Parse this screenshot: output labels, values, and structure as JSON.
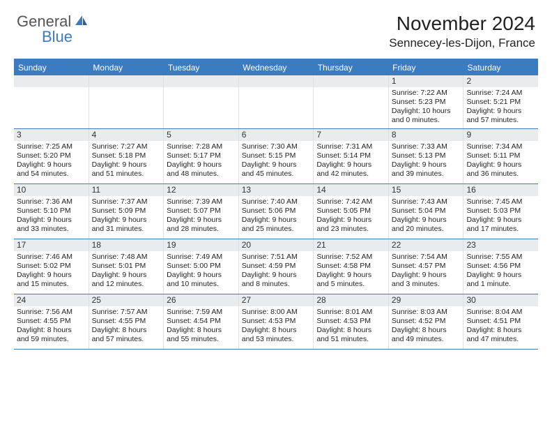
{
  "logo": {
    "general": "General",
    "blue": "Blue"
  },
  "header": {
    "monthTitle": "November 2024",
    "location": "Sennecey-les-Dijon, France"
  },
  "colors": {
    "accent": "#3b7bbf",
    "dayBar": "#e9ecef",
    "text": "#222222",
    "bg": "#ffffff"
  },
  "weekdays": [
    "Sunday",
    "Monday",
    "Tuesday",
    "Wednesday",
    "Thursday",
    "Friday",
    "Saturday"
  ],
  "weeks": [
    [
      {
        "n": "",
        "empty": true
      },
      {
        "n": "",
        "empty": true
      },
      {
        "n": "",
        "empty": true
      },
      {
        "n": "",
        "empty": true
      },
      {
        "n": "",
        "empty": true
      },
      {
        "n": "1",
        "sunrise": "Sunrise: 7:22 AM",
        "sunset": "Sunset: 5:23 PM",
        "day1": "Daylight: 10 hours",
        "day2": "and 0 minutes."
      },
      {
        "n": "2",
        "sunrise": "Sunrise: 7:24 AM",
        "sunset": "Sunset: 5:21 PM",
        "day1": "Daylight: 9 hours",
        "day2": "and 57 minutes."
      }
    ],
    [
      {
        "n": "3",
        "sunrise": "Sunrise: 7:25 AM",
        "sunset": "Sunset: 5:20 PM",
        "day1": "Daylight: 9 hours",
        "day2": "and 54 minutes."
      },
      {
        "n": "4",
        "sunrise": "Sunrise: 7:27 AM",
        "sunset": "Sunset: 5:18 PM",
        "day1": "Daylight: 9 hours",
        "day2": "and 51 minutes."
      },
      {
        "n": "5",
        "sunrise": "Sunrise: 7:28 AM",
        "sunset": "Sunset: 5:17 PM",
        "day1": "Daylight: 9 hours",
        "day2": "and 48 minutes."
      },
      {
        "n": "6",
        "sunrise": "Sunrise: 7:30 AM",
        "sunset": "Sunset: 5:15 PM",
        "day1": "Daylight: 9 hours",
        "day2": "and 45 minutes."
      },
      {
        "n": "7",
        "sunrise": "Sunrise: 7:31 AM",
        "sunset": "Sunset: 5:14 PM",
        "day1": "Daylight: 9 hours",
        "day2": "and 42 minutes."
      },
      {
        "n": "8",
        "sunrise": "Sunrise: 7:33 AM",
        "sunset": "Sunset: 5:13 PM",
        "day1": "Daylight: 9 hours",
        "day2": "and 39 minutes."
      },
      {
        "n": "9",
        "sunrise": "Sunrise: 7:34 AM",
        "sunset": "Sunset: 5:11 PM",
        "day1": "Daylight: 9 hours",
        "day2": "and 36 minutes."
      }
    ],
    [
      {
        "n": "10",
        "sunrise": "Sunrise: 7:36 AM",
        "sunset": "Sunset: 5:10 PM",
        "day1": "Daylight: 9 hours",
        "day2": "and 33 minutes."
      },
      {
        "n": "11",
        "sunrise": "Sunrise: 7:37 AM",
        "sunset": "Sunset: 5:09 PM",
        "day1": "Daylight: 9 hours",
        "day2": "and 31 minutes."
      },
      {
        "n": "12",
        "sunrise": "Sunrise: 7:39 AM",
        "sunset": "Sunset: 5:07 PM",
        "day1": "Daylight: 9 hours",
        "day2": "and 28 minutes."
      },
      {
        "n": "13",
        "sunrise": "Sunrise: 7:40 AM",
        "sunset": "Sunset: 5:06 PM",
        "day1": "Daylight: 9 hours",
        "day2": "and 25 minutes."
      },
      {
        "n": "14",
        "sunrise": "Sunrise: 7:42 AM",
        "sunset": "Sunset: 5:05 PM",
        "day1": "Daylight: 9 hours",
        "day2": "and 23 minutes."
      },
      {
        "n": "15",
        "sunrise": "Sunrise: 7:43 AM",
        "sunset": "Sunset: 5:04 PM",
        "day1": "Daylight: 9 hours",
        "day2": "and 20 minutes."
      },
      {
        "n": "16",
        "sunrise": "Sunrise: 7:45 AM",
        "sunset": "Sunset: 5:03 PM",
        "day1": "Daylight: 9 hours",
        "day2": "and 17 minutes."
      }
    ],
    [
      {
        "n": "17",
        "sunrise": "Sunrise: 7:46 AM",
        "sunset": "Sunset: 5:02 PM",
        "day1": "Daylight: 9 hours",
        "day2": "and 15 minutes."
      },
      {
        "n": "18",
        "sunrise": "Sunrise: 7:48 AM",
        "sunset": "Sunset: 5:01 PM",
        "day1": "Daylight: 9 hours",
        "day2": "and 12 minutes."
      },
      {
        "n": "19",
        "sunrise": "Sunrise: 7:49 AM",
        "sunset": "Sunset: 5:00 PM",
        "day1": "Daylight: 9 hours",
        "day2": "and 10 minutes."
      },
      {
        "n": "20",
        "sunrise": "Sunrise: 7:51 AM",
        "sunset": "Sunset: 4:59 PM",
        "day1": "Daylight: 9 hours",
        "day2": "and 8 minutes."
      },
      {
        "n": "21",
        "sunrise": "Sunrise: 7:52 AM",
        "sunset": "Sunset: 4:58 PM",
        "day1": "Daylight: 9 hours",
        "day2": "and 5 minutes."
      },
      {
        "n": "22",
        "sunrise": "Sunrise: 7:54 AM",
        "sunset": "Sunset: 4:57 PM",
        "day1": "Daylight: 9 hours",
        "day2": "and 3 minutes."
      },
      {
        "n": "23",
        "sunrise": "Sunrise: 7:55 AM",
        "sunset": "Sunset: 4:56 PM",
        "day1": "Daylight: 9 hours",
        "day2": "and 1 minute."
      }
    ],
    [
      {
        "n": "24",
        "sunrise": "Sunrise: 7:56 AM",
        "sunset": "Sunset: 4:55 PM",
        "day1": "Daylight: 8 hours",
        "day2": "and 59 minutes."
      },
      {
        "n": "25",
        "sunrise": "Sunrise: 7:57 AM",
        "sunset": "Sunset: 4:55 PM",
        "day1": "Daylight: 8 hours",
        "day2": "and 57 minutes."
      },
      {
        "n": "26",
        "sunrise": "Sunrise: 7:59 AM",
        "sunset": "Sunset: 4:54 PM",
        "day1": "Daylight: 8 hours",
        "day2": "and 55 minutes."
      },
      {
        "n": "27",
        "sunrise": "Sunrise: 8:00 AM",
        "sunset": "Sunset: 4:53 PM",
        "day1": "Daylight: 8 hours",
        "day2": "and 53 minutes."
      },
      {
        "n": "28",
        "sunrise": "Sunrise: 8:01 AM",
        "sunset": "Sunset: 4:53 PM",
        "day1": "Daylight: 8 hours",
        "day2": "and 51 minutes."
      },
      {
        "n": "29",
        "sunrise": "Sunrise: 8:03 AM",
        "sunset": "Sunset: 4:52 PM",
        "day1": "Daylight: 8 hours",
        "day2": "and 49 minutes."
      },
      {
        "n": "30",
        "sunrise": "Sunrise: 8:04 AM",
        "sunset": "Sunset: 4:51 PM",
        "day1": "Daylight: 8 hours",
        "day2": "and 47 minutes."
      }
    ]
  ]
}
